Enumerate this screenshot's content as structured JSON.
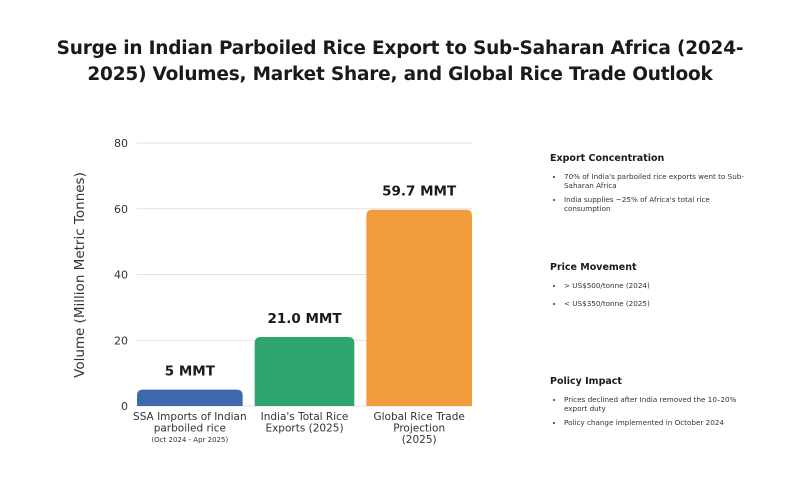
{
  "title": "Surge in Indian Parboiled Rice Export to Sub-Saharan Africa (2024-2025) Volumes, Market Share, and Global Rice Trade Outlook",
  "chart_data": {
    "type": "bar",
    "categories": [
      {
        "lines": [
          "SSA Imports of Indian",
          "parboiled rice"
        ],
        "sub": "(Oct 2024 - Apr 2025)"
      },
      {
        "lines": [
          "India's Total Rice",
          "Exports (2025)"
        ],
        "sub": ""
      },
      {
        "lines": [
          "Global Rice Trade",
          "Projection",
          "(2025)"
        ],
        "sub": ""
      }
    ],
    "values": [
      5,
      21.0,
      59.7
    ],
    "data_labels": [
      "5 MMT",
      "21.0 MMT",
      "59.7 MMT"
    ],
    "colors": [
      "#3d6aad",
      "#2fa56f",
      "#f29d3c"
    ],
    "ylabel": "Volume (Million Metric Tonnes)",
    "ylim": [
      0,
      80
    ],
    "yticks": [
      0,
      20,
      40,
      60,
      80
    ],
    "grid": true
  },
  "panels": [
    {
      "heading": "Export Concentration",
      "bullets": [
        "70% of India's parboiled rice exports went to Sub-Saharan Africa",
        "India supplies ~25% of Africa's total rice consumption"
      ]
    },
    {
      "heading": "Price Movement",
      "bullets": [
        "> US$500/tonne (2024)",
        "< US$350/tonne (2025)"
      ]
    },
    {
      "heading": "Policy Impact",
      "bullets": [
        "Prices declined after India removed the 10–20% export duty",
        "Policy change implemented in October 2024"
      ]
    }
  ]
}
